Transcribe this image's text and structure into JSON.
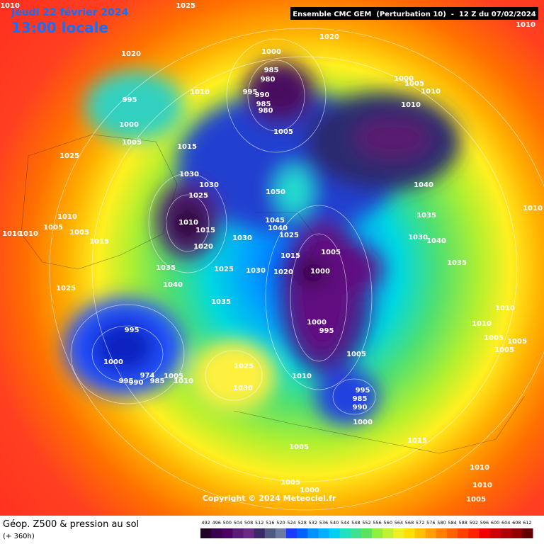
{
  "header": {
    "date": "Jeudi 22 février 2024",
    "time": "13:00 locale",
    "model": "Ensemble CMC GEM  (Perturbation 10)  -  12 Z du 07/02/2024"
  },
  "copyright": "Copyright © 2024 Meteociel.fr",
  "footer": {
    "title": "Géop. Z500 & pression au sol",
    "subtitle": "(+ 360h)"
  },
  "legend": {
    "ticks": [
      492,
      496,
      500,
      504,
      508,
      512,
      516,
      520,
      524,
      528,
      532,
      536,
      540,
      544,
      548,
      552,
      556,
      560,
      564,
      568,
      572,
      576,
      580,
      584,
      588,
      592,
      596,
      600,
      604,
      608,
      612
    ]
  },
  "pressure_labels": [
    "1010",
    "1025",
    "1010",
    "1020",
    "1020",
    "1000",
    "985",
    "980",
    "995",
    "990",
    "985",
    "980",
    "1005",
    "1000",
    "1005",
    "1010",
    "1010",
    "1010",
    "995",
    "1000",
    "1005",
    "1015",
    "1025",
    "1030",
    "1030",
    "1050",
    "1040",
    "1025",
    "1010",
    "1035",
    "1010",
    "1010",
    "1010",
    "1005",
    "1005",
    "1010",
    "1015",
    "1045",
    "1040",
    "1025",
    "1030",
    "1015",
    "1030",
    "1040",
    "1020",
    "1015",
    "1005",
    "1000",
    "1020",
    "1030",
    "1025",
    "1035",
    "1035",
    "1040",
    "1025",
    "1035",
    "1010",
    "1000",
    "995",
    "1010",
    "995",
    "1005",
    "1005",
    "1005",
    "1005",
    "1000",
    "1025",
    "1005",
    "1010",
    "985",
    "1010",
    "995",
    "990",
    "974",
    "995",
    "1030",
    "985",
    "990",
    "1000",
    "1015",
    "1005",
    "1010",
    "1005",
    "1010",
    "1000",
    "1005"
  ]
}
